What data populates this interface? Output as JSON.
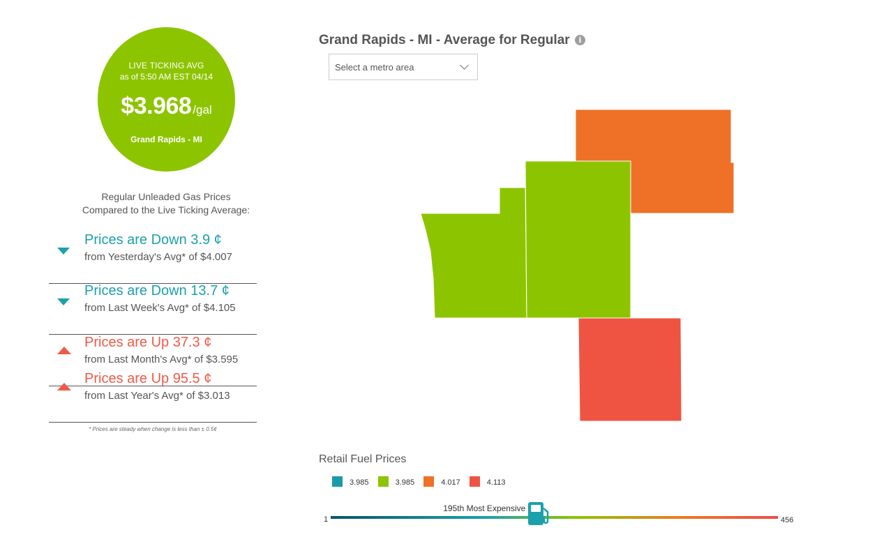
{
  "live": {
    "label": "LIVE TICKING AVG",
    "as_of": "as of   5:50 AM EST 04/14",
    "price": "$3.968",
    "unit": "/gal",
    "city": "Grand Rapids - MI"
  },
  "compare": {
    "heading_line1": "Regular Unleaded Gas Prices",
    "heading_line2": "Compared to the Live Ticking Average:",
    "rows": [
      {
        "direction": "down",
        "headline": "Prices are Down 3.9 ¢",
        "detail": "from Yesterday's Avg* of $4.007"
      },
      {
        "direction": "down",
        "headline": "Prices are Down 13.7 ¢",
        "detail": "from Last Week's Avg* of $4.105"
      },
      {
        "direction": "up",
        "headline": "Prices are Up 37.3 ¢",
        "detail": "from Last Month's Avg* of $3.595"
      },
      {
        "direction": "up",
        "headline": "Prices are Up 95.5 ¢",
        "detail": "from Last Year's Avg* of $3.013"
      }
    ],
    "footnote": "* Prices are steady when change is less than ± 0.5¢"
  },
  "map": {
    "title": "Grand Rapids - MI - Average for Regular",
    "info_icon": "info-circle-icon",
    "select_placeholder": "Select a metro area",
    "region_colors": {
      "northeast": "#ee7127",
      "west": "#8dc400",
      "center": "#8dc400",
      "south": "#ef5442"
    }
  },
  "legend": {
    "title": "Retail Fuel Prices",
    "items": [
      {
        "value": "3.985",
        "color": "#1b9aaa"
      },
      {
        "value": "3.985",
        "color": "#8dc400"
      },
      {
        "value": "4.017",
        "color": "#ee7127"
      },
      {
        "value": "4.113",
        "color": "#ef5442"
      }
    ]
  },
  "rank": {
    "min": "1",
    "max": "456",
    "label": "195th Most Expensive",
    "position": 195,
    "total": 456,
    "pump_icon": "gas-pump-icon"
  },
  "colors": {
    "up": "#ef5a47",
    "down": "#1ba1ac",
    "live_bg": "#8dc400"
  }
}
